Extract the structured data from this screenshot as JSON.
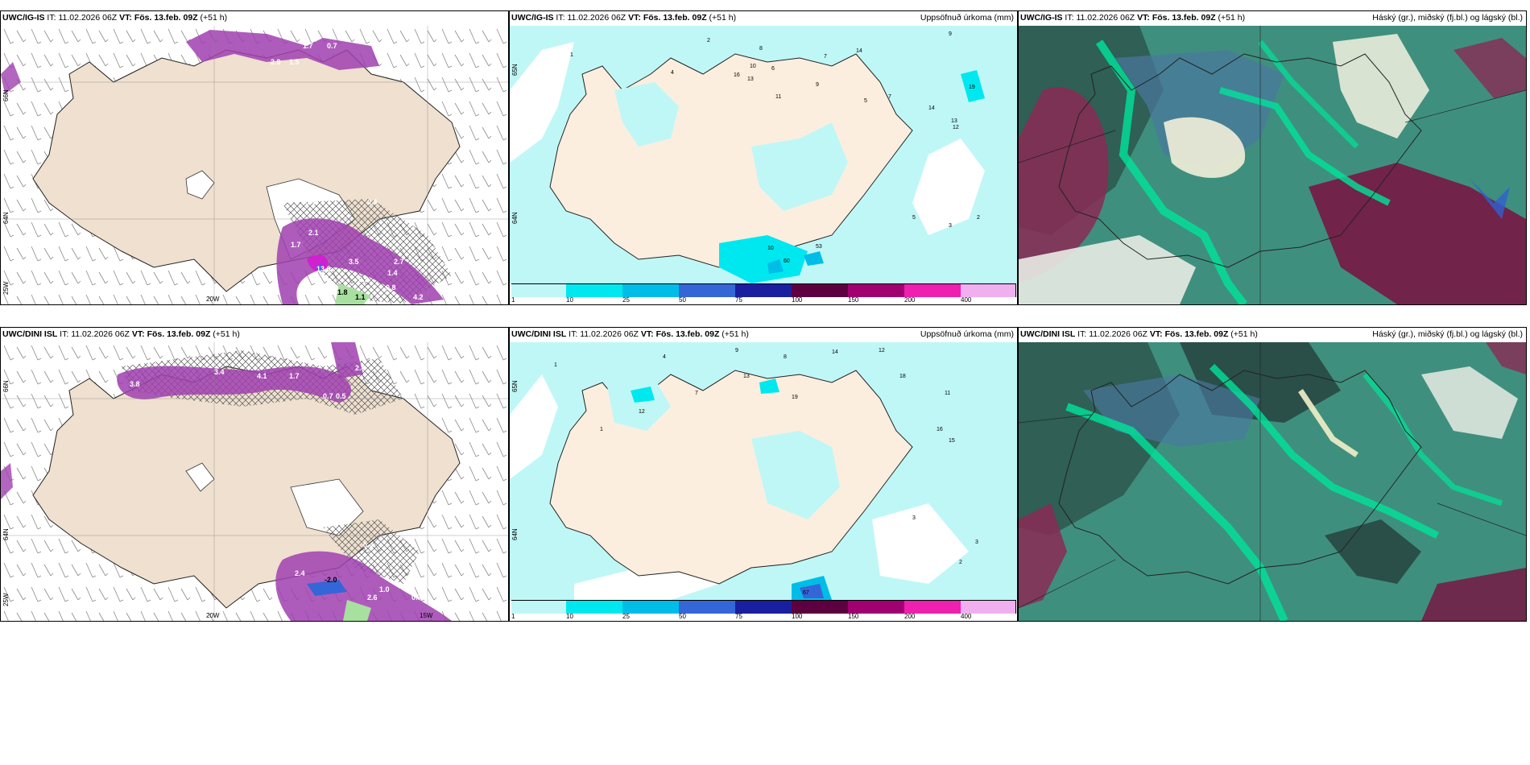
{
  "panels": [
    {
      "model": "UWC/IG-IS",
      "it_label": "IT:",
      "it": "11.02.2026 06Z",
      "vt_label": "VT:",
      "vt": "Fös. 13.feb. 09Z",
      "step": "(+51 h)",
      "title": ""
    },
    {
      "model": "UWC/IG-IS",
      "it_label": "IT:",
      "it": "11.02.2026 06Z",
      "vt_label": "VT:",
      "vt": "Fös. 13.feb. 09Z",
      "step": "(+51 h)",
      "title": "Uppsöfnuð úrkoma (mm)"
    },
    {
      "model": "UWC/IG-IS",
      "it_label": "IT:",
      "it": "11.02.2026 06Z",
      "vt_label": "VT:",
      "vt": "Fös. 13.feb. 09Z",
      "step": "(+51 h)",
      "title": "Háský (gr.), miðský (fj.bl.) og lágský (bl.)"
    },
    {
      "model": "UWC/DINI ISL",
      "it_label": "IT:",
      "it": "11.02.2026 06Z",
      "vt_label": "VT:",
      "vt": "Fös. 13.feb. 09Z",
      "step": "(+51 h)",
      "title": ""
    },
    {
      "model": "UWC/DINI ISL",
      "it_label": "IT:",
      "it": "11.02.2026 06Z",
      "vt_label": "VT:",
      "vt": "Fös. 13.feb. 09Z",
      "step": "(+51 h)",
      "title": "Uppsöfnuð úrkoma (mm)"
    },
    {
      "model": "UWC/DINI ISL",
      "it_label": "IT:",
      "it": "11.02.2026 06Z",
      "vt_label": "VT:",
      "vt": "Fös. 13.feb. 09Z",
      "step": "(+51 h)",
      "title": "Háský (gr.), miðský (fj.bl.) og lágský (bl.)"
    }
  ],
  "axis_labels": {
    "lat66": "66N",
    "lat64": "64N",
    "lon25": "25W",
    "lon20": "20W",
    "lon15": "15W",
    "lat65": "65N"
  },
  "colorbar": {
    "ticks": [
      "1",
      "10",
      "25",
      "50",
      "75",
      "100",
      "150",
      "200",
      "400"
    ],
    "colors": [
      "#bff7f7",
      "#00e8ef",
      "#00bde8",
      "#3566d8",
      "#1a1fa0",
      "#5c0040",
      "#a00070",
      "#ef1fb0",
      "#f0b0f0"
    ]
  },
  "precip_top": [
    "1",
    "2",
    "4",
    "6",
    "8",
    "7",
    "14",
    "9",
    "16",
    "13",
    "10",
    "11",
    "9",
    "5",
    "19",
    "14",
    "13",
    "12",
    "53",
    "60",
    "10",
    "7",
    "5",
    "3",
    "2"
  ],
  "precip_bottom": [
    "1",
    "4",
    "9",
    "7",
    "8",
    "14",
    "12",
    "13",
    "19",
    "16",
    "18",
    "11",
    "15",
    "12",
    "3",
    "67",
    "3",
    "2",
    "1"
  ],
  "snow_top": [
    "1.7",
    "0.7",
    "2.9",
    "1.5",
    "0.4",
    "0.4",
    "2.1",
    "1.7",
    "3.5",
    "2.7",
    "1.4",
    "13.6",
    "6.3",
    "0.8",
    "4.2",
    "1.8",
    "1.1"
  ],
  "snow_bottom": [
    "3.8",
    "3.4",
    "4.1",
    "1.7",
    "2.4",
    "0.7",
    "0.5",
    "2.4",
    "-2.0",
    "1.0",
    "0.4",
    "2.6",
    "0.7"
  ]
}
